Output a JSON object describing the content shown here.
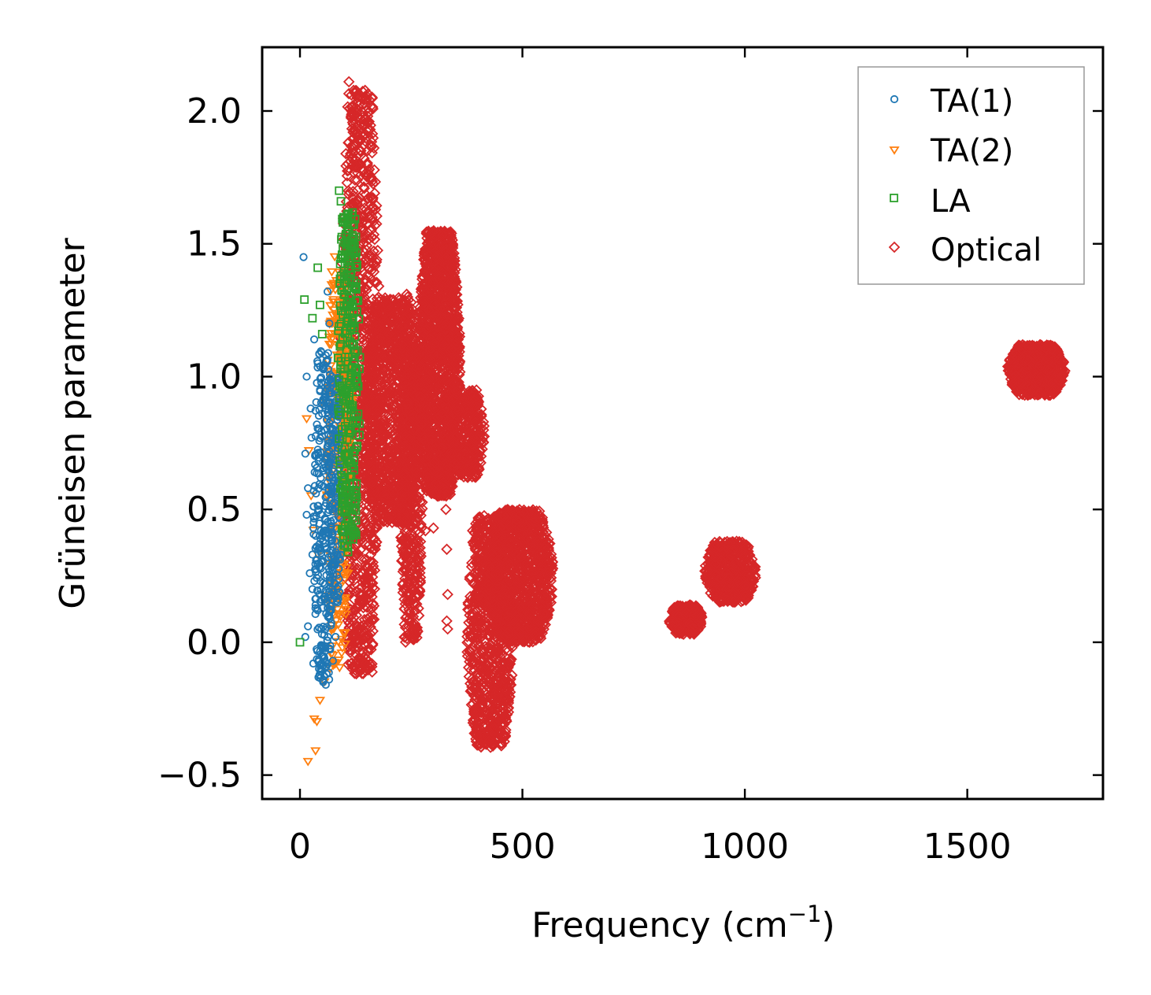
{
  "chart_data": {
    "type": "scatter",
    "title": "",
    "xlabel": "Frequency (cm",
    "xlabel_sup": "−1",
    "xlabel_close": ")",
    "ylabel": "Grüneisen parameter",
    "xlim": [
      -85,
      1805
    ],
    "ylim": [
      -0.59,
      2.24
    ],
    "xticks": [
      0,
      500,
      1000,
      1500
    ],
    "xtick_labels": [
      "0",
      "500",
      "1000",
      "1500"
    ],
    "yticks": [
      -0.5,
      0.0,
      0.5,
      1.0,
      1.5,
      2.0
    ],
    "ytick_labels": [
      "−0.5",
      "0.0",
      "0.5",
      "1.0",
      "1.5",
      "2.0"
    ],
    "legend_position": "top-right",
    "series": [
      {
        "name": "TA(1)",
        "marker": "circle",
        "color": "#1f77b4",
        "points": [
          [
            8,
            1.45
          ],
          [
            15,
            1.0
          ],
          [
            12,
            0.71
          ],
          [
            18,
            0.58
          ],
          [
            15,
            0.48
          ],
          [
            28,
            0.33
          ],
          [
            22,
            0.26
          ],
          [
            28,
            0.2
          ],
          [
            35,
            0.14
          ],
          [
            18,
            0.06
          ],
          [
            12,
            0.02
          ],
          [
            30,
            -0.08
          ],
          [
            32,
            1.14
          ],
          [
            40,
            1.05
          ],
          [
            45,
            0.95
          ],
          [
            24,
            0.88
          ],
          [
            38,
            0.82
          ],
          [
            26,
            0.77
          ],
          [
            33,
            0.64
          ],
          [
            36,
            0.56
          ],
          [
            42,
            0.5
          ],
          [
            30,
            0.43
          ],
          [
            44,
            0.37
          ],
          [
            38,
            0.31
          ],
          [
            46,
            0.23
          ],
          [
            40,
            0.12
          ],
          [
            48,
            0.05
          ],
          [
            50,
            -0.02
          ],
          [
            55,
            -0.06
          ],
          [
            60,
            -0.12
          ],
          [
            58,
            -0.16
          ],
          [
            62,
            1.32
          ],
          [
            66,
            1.2
          ],
          [
            58,
            1.08
          ],
          [
            70,
            0.98
          ],
          [
            64,
            0.9
          ],
          [
            72,
            0.8
          ],
          [
            68,
            0.7
          ],
          [
            74,
            0.62
          ],
          [
            60,
            0.55
          ],
          [
            76,
            0.46
          ],
          [
            70,
            0.38
          ],
          [
            78,
            0.29
          ],
          [
            72,
            0.2
          ],
          [
            66,
            0.1
          ],
          [
            80,
            0.02
          ],
          [
            74,
            -0.07
          ],
          [
            84,
            0.72
          ],
          [
            86,
            0.6
          ],
          [
            82,
            0.86
          ],
          [
            88,
            0.51
          ],
          [
            52,
            0.68
          ],
          [
            56,
            0.42
          ],
          [
            54,
            0.17
          ]
        ],
        "clusters": [
          [
            30,
            76,
            -0.15,
            1.1,
            260
          ],
          [
            60,
            96,
            0.15,
            1.0,
            160
          ]
        ]
      },
      {
        "name": "TA(2)",
        "marker": "triangle-down",
        "color": "#ff7f0e",
        "points": [
          [
            18,
            -0.45
          ],
          [
            35,
            -0.41
          ],
          [
            32,
            -0.29
          ],
          [
            38,
            -0.3
          ],
          [
            45,
            -0.22
          ],
          [
            55,
            -0.15
          ],
          [
            15,
            0.84
          ],
          [
            20,
            0.72
          ],
          [
            25,
            0.55
          ],
          [
            30,
            0.42
          ],
          [
            40,
            0.33
          ],
          [
            50,
            0.9
          ],
          [
            62,
            1.06
          ],
          [
            70,
            1.12
          ],
          [
            75,
            1.28
          ],
          [
            78,
            1.45
          ],
          [
            82,
            1.36
          ],
          [
            88,
            1.22
          ],
          [
            64,
            0.15
          ],
          [
            72,
            0.05
          ],
          [
            68,
            -0.1
          ],
          [
            80,
            0.9
          ],
          [
            85,
            0.75
          ],
          [
            90,
            0.6
          ],
          [
            95,
            0.5
          ],
          [
            100,
            0.4
          ],
          [
            104,
            0.26
          ],
          [
            96,
            0.88
          ],
          [
            92,
            1.05
          ]
        ],
        "clusters": [
          [
            60,
            112,
            -0.1,
            1.4,
            260
          ],
          [
            85,
            120,
            0.6,
            1.25,
            120
          ]
        ]
      },
      {
        "name": "LA",
        "marker": "square",
        "color": "#2ca02c",
        "points": [
          [
            0,
            0.0
          ],
          [
            10,
            1.29
          ],
          [
            28,
            1.22
          ],
          [
            40,
            1.41
          ],
          [
            45,
            1.27
          ],
          [
            50,
            1.16
          ],
          [
            88,
            1.7
          ],
          [
            92,
            1.66
          ],
          [
            98,
            1.6
          ],
          [
            110,
            1.55
          ],
          [
            118,
            1.5
          ],
          [
            125,
            1.45
          ],
          [
            115,
            0.44
          ],
          [
            108,
            0.34
          ],
          [
            112,
            0.5
          ],
          [
            120,
            0.6
          ]
        ],
        "clusters": [
          [
            85,
            135,
            0.35,
            1.62,
            320
          ]
        ]
      },
      {
        "name": "Optical",
        "marker": "diamond",
        "color": "#d62728",
        "points": [
          [
            110,
            2.11
          ],
          [
            115,
            1.98
          ],
          [
            250,
            1.28
          ],
          [
            240,
            1.31
          ],
          [
            232,
            1.25
          ],
          [
            322,
            0.58
          ],
          [
            328,
            0.5
          ],
          [
            330,
            0.35
          ],
          [
            332,
            0.18
          ],
          [
            330,
            0.08
          ],
          [
            332,
            0.05
          ],
          [
            282,
            0.42
          ],
          [
            300,
            0.43
          ],
          [
            388,
            0.42
          ],
          [
            390,
            0.22
          ],
          [
            320,
            0.73
          ],
          [
            330,
            0.65
          ],
          [
            340,
            0.6
          ]
        ],
        "clusters": [
          [
            90,
            180,
            -0.12,
            2.08,
            1000
          ],
          [
            140,
            275,
            0.45,
            1.3,
            1200
          ],
          [
            225,
            275,
            0.0,
            1.1,
            500
          ],
          [
            265,
            360,
            0.55,
            1.55,
            1700
          ],
          [
            330,
            415,
            0.62,
            0.95,
            400
          ],
          [
            375,
            480,
            -0.4,
            0.48,
            900
          ],
          [
            420,
            570,
            0.0,
            0.5,
            1200
          ],
          [
            830,
            905,
            0.03,
            0.14,
            300
          ],
          [
            910,
            1025,
            0.15,
            0.38,
            500
          ],
          [
            1590,
            1720,
            0.93,
            1.12,
            700
          ]
        ]
      }
    ]
  }
}
